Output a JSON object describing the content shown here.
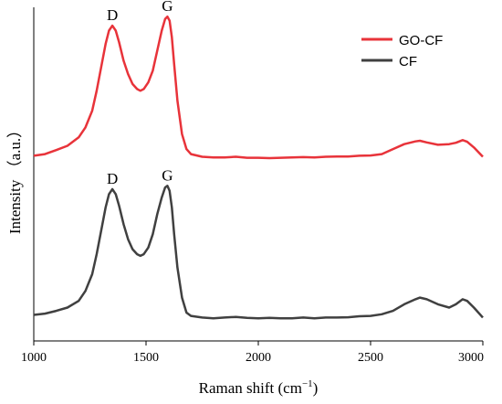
{
  "chart_data": {
    "type": "line",
    "title": "",
    "xlabel": "Raman shift (cm",
    "xlabel_sup": "−1",
    "xlabel_end": ")",
    "ylabel": "Intensity （a.u.）",
    "xlim": [
      1000,
      3000
    ],
    "ylim": [
      0,
      1
    ],
    "x_ticks": [
      "1000",
      "1500",
      "2000",
      "2500",
      "3000"
    ],
    "grid": false,
    "legend_position": "top-right",
    "series": [
      {
        "name": "GO-CF",
        "color": "#e8333a",
        "points": [
          [
            1000,
            0.555
          ],
          [
            1050,
            0.56
          ],
          [
            1100,
            0.572
          ],
          [
            1150,
            0.585
          ],
          [
            1200,
            0.61
          ],
          [
            1230,
            0.64
          ],
          [
            1260,
            0.69
          ],
          [
            1280,
            0.75
          ],
          [
            1300,
            0.82
          ],
          [
            1320,
            0.89
          ],
          [
            1335,
            0.93
          ],
          [
            1350,
            0.945
          ],
          [
            1365,
            0.93
          ],
          [
            1380,
            0.895
          ],
          [
            1400,
            0.84
          ],
          [
            1420,
            0.8
          ],
          [
            1440,
            0.77
          ],
          [
            1460,
            0.755
          ],
          [
            1475,
            0.75
          ],
          [
            1490,
            0.755
          ],
          [
            1510,
            0.775
          ],
          [
            1530,
            0.81
          ],
          [
            1550,
            0.87
          ],
          [
            1570,
            0.93
          ],
          [
            1585,
            0.965
          ],
          [
            1595,
            0.972
          ],
          [
            1605,
            0.96
          ],
          [
            1615,
            0.91
          ],
          [
            1625,
            0.83
          ],
          [
            1640,
            0.72
          ],
          [
            1660,
            0.62
          ],
          [
            1680,
            0.575
          ],
          [
            1700,
            0.56
          ],
          [
            1750,
            0.552
          ],
          [
            1800,
            0.55
          ],
          [
            1850,
            0.55
          ],
          [
            1900,
            0.552
          ],
          [
            1950,
            0.549
          ],
          [
            2000,
            0.549
          ],
          [
            2050,
            0.548
          ],
          [
            2100,
            0.549
          ],
          [
            2150,
            0.55
          ],
          [
            2200,
            0.551
          ],
          [
            2250,
            0.55
          ],
          [
            2300,
            0.552
          ],
          [
            2350,
            0.553
          ],
          [
            2400,
            0.553
          ],
          [
            2450,
            0.555
          ],
          [
            2500,
            0.556
          ],
          [
            2550,
            0.56
          ],
          [
            2600,
            0.575
          ],
          [
            2650,
            0.59
          ],
          [
            2700,
            0.598
          ],
          [
            2720,
            0.6
          ],
          [
            2750,
            0.595
          ],
          [
            2800,
            0.588
          ],
          [
            2850,
            0.59
          ],
          [
            2880,
            0.594
          ],
          [
            2910,
            0.602
          ],
          [
            2930,
            0.597
          ],
          [
            2960,
            0.58
          ],
          [
            3000,
            0.552
          ]
        ]
      },
      {
        "name": "CF",
        "color": "#404040",
        "points": [
          [
            1000,
            0.078
          ],
          [
            1050,
            0.082
          ],
          [
            1100,
            0.09
          ],
          [
            1150,
            0.1
          ],
          [
            1200,
            0.12
          ],
          [
            1230,
            0.15
          ],
          [
            1260,
            0.2
          ],
          [
            1280,
            0.26
          ],
          [
            1300,
            0.33
          ],
          [
            1320,
            0.4
          ],
          [
            1335,
            0.44
          ],
          [
            1350,
            0.455
          ],
          [
            1365,
            0.44
          ],
          [
            1380,
            0.405
          ],
          [
            1400,
            0.35
          ],
          [
            1420,
            0.305
          ],
          [
            1440,
            0.275
          ],
          [
            1460,
            0.26
          ],
          [
            1475,
            0.255
          ],
          [
            1490,
            0.26
          ],
          [
            1510,
            0.28
          ],
          [
            1530,
            0.32
          ],
          [
            1550,
            0.38
          ],
          [
            1570,
            0.43
          ],
          [
            1585,
            0.46
          ],
          [
            1595,
            0.465
          ],
          [
            1605,
            0.45
          ],
          [
            1615,
            0.4
          ],
          [
            1625,
            0.32
          ],
          [
            1640,
            0.22
          ],
          [
            1660,
            0.13
          ],
          [
            1680,
            0.085
          ],
          [
            1700,
            0.075
          ],
          [
            1750,
            0.07
          ],
          [
            1800,
            0.068
          ],
          [
            1850,
            0.07
          ],
          [
            1900,
            0.072
          ],
          [
            1950,
            0.069
          ],
          [
            2000,
            0.068
          ],
          [
            2050,
            0.069
          ],
          [
            2100,
            0.068
          ],
          [
            2150,
            0.068
          ],
          [
            2200,
            0.07
          ],
          [
            2250,
            0.068
          ],
          [
            2300,
            0.07
          ],
          [
            2350,
            0.07
          ],
          [
            2400,
            0.071
          ],
          [
            2450,
            0.074
          ],
          [
            2500,
            0.075
          ],
          [
            2550,
            0.08
          ],
          [
            2600,
            0.09
          ],
          [
            2650,
            0.11
          ],
          [
            2700,
            0.125
          ],
          [
            2720,
            0.13
          ],
          [
            2750,
            0.125
          ],
          [
            2800,
            0.11
          ],
          [
            2850,
            0.1
          ],
          [
            2880,
            0.11
          ],
          [
            2910,
            0.125
          ],
          [
            2930,
            0.12
          ],
          [
            2960,
            0.1
          ],
          [
            3000,
            0.07
          ]
        ]
      }
    ],
    "annotations": [
      {
        "text": "D",
        "x": 1350,
        "y": 0.945
      },
      {
        "text": "G",
        "x": 1595,
        "y": 0.972
      },
      {
        "text": "D",
        "x": 1350,
        "y": 0.455
      },
      {
        "text": "G",
        "x": 1595,
        "y": 0.465
      }
    ]
  }
}
